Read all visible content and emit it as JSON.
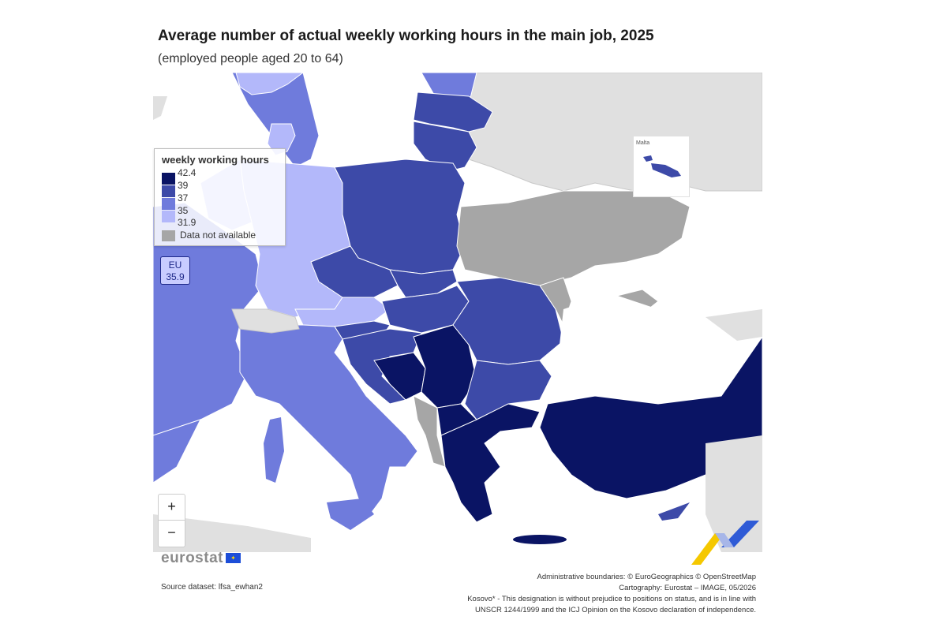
{
  "title": "Average number of actual weekly working hours in the main job, 2025",
  "subtitle": "(employed people aged 20 to 64)",
  "legend": {
    "title": "weekly working hours",
    "classes": [
      {
        "color": "#0a1464",
        "upper": "42.4",
        "lower": "39"
      },
      {
        "color": "#3d4aa8",
        "upper": "39",
        "lower": "37"
      },
      {
        "color": "#6f7bdc",
        "upper": "37",
        "lower": "35"
      },
      {
        "color": "#b3b8fa",
        "upper": "35",
        "lower": "31.9"
      }
    ],
    "ticks": [
      "42.4",
      "39",
      "37",
      "35",
      "31.9"
    ],
    "not_available_label": "Data not available",
    "not_available_color": "#a6a6a6",
    "non_eu_color": "#e0e0e0"
  },
  "eu_badge": {
    "label": "EU",
    "value": "35.9"
  },
  "malta_inset": {
    "label": "Malta"
  },
  "zoom": {
    "in_label": "+",
    "out_label": "−"
  },
  "logo": {
    "text": "eurostat"
  },
  "source": "Source dataset: lfsa_ewhan2",
  "credits": [
    "Administrative boundaries: © EuroGeographics © OpenStreetMap",
    "Cartography: Eurostat – IMAGE, 05/2026",
    "Kosovo* - This designation is without prejudice to positions on status, and is in line with",
    "UNSCR 1244/1999 and the ICJ Opinion on the Kosovo declaration of independence."
  ]
}
